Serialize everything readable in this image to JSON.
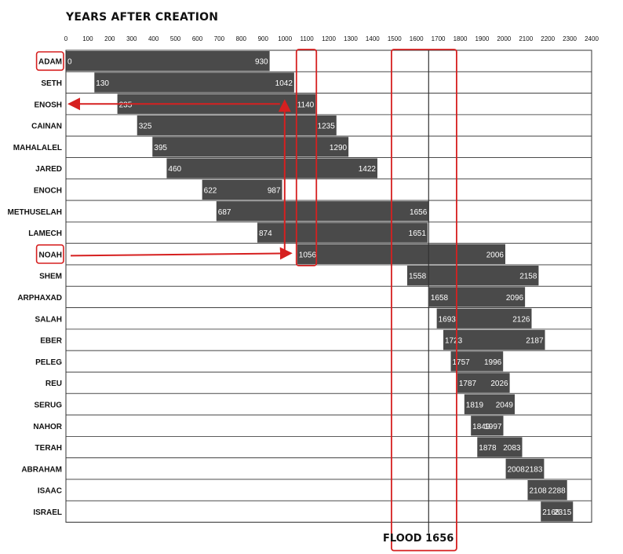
{
  "chart_data": {
    "type": "bar",
    "title": "YEARS AFTER CREATION",
    "x_ticks": [
      0,
      100,
      200,
      300,
      400,
      500,
      600,
      700,
      800,
      900,
      1000,
      1100,
      1200,
      1300,
      1400,
      1500,
      1600,
      1700,
      1800,
      1900,
      2000,
      2100,
      2200,
      2300,
      2400
    ],
    "xlim": [
      0,
      2400
    ],
    "series": [
      {
        "label": "ADAM",
        "start": 0,
        "end": 930,
        "start_label": "0",
        "end_label": "930"
      },
      {
        "label": "SETH",
        "start": 130,
        "end": 1042,
        "start_label": "130",
        "end_label": "1042"
      },
      {
        "label": "ENOSH",
        "start": 235,
        "end": 1140,
        "start_label": "235",
        "end_label": "1140"
      },
      {
        "label": "CAINAN",
        "start": 325,
        "end": 1235,
        "start_label": "325",
        "end_label": "1235"
      },
      {
        "label": "MAHALALEL",
        "start": 395,
        "end": 1290,
        "start_label": "395",
        "end_label": "1290"
      },
      {
        "label": "JARED",
        "start": 460,
        "end": 1422,
        "start_label": "460",
        "end_label": "1422"
      },
      {
        "label": "ENOCH",
        "start": 622,
        "end": 987,
        "start_label": "622",
        "end_label": "987"
      },
      {
        "label": "METHUSELAH",
        "start": 687,
        "end": 1656,
        "start_label": "687",
        "end_label": "1656"
      },
      {
        "label": "LAMECH",
        "start": 874,
        "end": 1651,
        "start_label": "874",
        "end_label": "1651"
      },
      {
        "label": "NOAH",
        "start": 1056,
        "end": 2006,
        "start_label": "1056",
        "end_label": "2006"
      },
      {
        "label": "SHEM",
        "start": 1558,
        "end": 2158,
        "start_label": "1558",
        "end_label": "2158"
      },
      {
        "label": "ARPHAXAD",
        "start": 1658,
        "end": 2096,
        "start_label": "1658",
        "end_label": "2096"
      },
      {
        "label": "SALAH",
        "start": 1693,
        "end": 2126,
        "start_label": "1693",
        "end_label": "2126"
      },
      {
        "label": "EBER",
        "start": 1723,
        "end": 2187,
        "start_label": "1723",
        "end_label": "2187"
      },
      {
        "label": "PELEG",
        "start": 1757,
        "end": 1996,
        "start_label": "1757",
        "end_label": "1996"
      },
      {
        "label": "REU",
        "start": 1787,
        "end": 2026,
        "start_label": "1787",
        "end_label": "2026"
      },
      {
        "label": "SERUG",
        "start": 1819,
        "end": 2049,
        "start_label": "1819",
        "end_label": "2049"
      },
      {
        "label": "NAHOR",
        "start": 1849,
        "end": 1997,
        "start_label": "1849",
        "end_label": "1997"
      },
      {
        "label": "TERAH",
        "start": 1878,
        "end": 2083,
        "start_label": "1878",
        "end_label": "2083"
      },
      {
        "label": "ABRAHAM",
        "start": 2008,
        "end": 2183,
        "start_label": "2008",
        "end_label": "2183"
      },
      {
        "label": "ISAAC",
        "start": 2108,
        "end": 2288,
        "start_label": "2108",
        "end_label": "2288"
      },
      {
        "label": "ISRAEL",
        "start": 2168,
        "end": 2315,
        "start_label": "2168",
        "end_label": "2315"
      }
    ],
    "flood": {
      "label": "FLOOD 1656",
      "year": 1656
    },
    "highlight_rows": [
      "ADAM",
      "NOAH"
    ],
    "highlight_ranges": [
      [
        1056,
        1140
      ],
      [
        1490,
        1780
      ]
    ],
    "colors": {
      "bar": "#4a4a4a",
      "bar_text": "#ffffff",
      "highlight": "#d62020",
      "grid": "#333333",
      "label": "#111111"
    },
    "grid": true
  }
}
